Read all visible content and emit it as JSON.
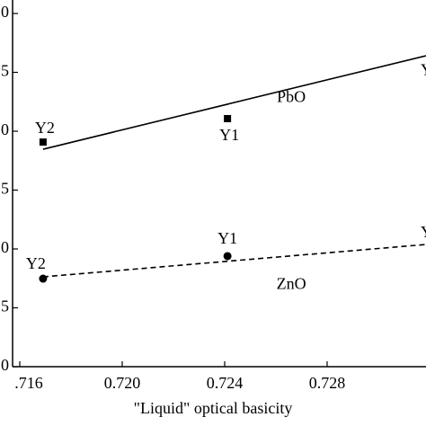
{
  "chart_data": {
    "type": "scatter",
    "x_label": "\"Liquid\" optical basicity",
    "xlim": [
      0.71572,
      0.73186
    ],
    "xticks": [
      {
        "value": 0.716,
        "label": ".716"
      },
      {
        "value": 0.72,
        "label": "0.720"
      },
      {
        "value": 0.724,
        "label": "0.724"
      },
      {
        "value": 0.728,
        "label": "0.728"
      }
    ],
    "ylim": [
      0,
      30
    ],
    "yticks": [
      0,
      5,
      {
        "value": 10,
        "label": "0"
      },
      {
        "value": 15,
        "label": "5"
      },
      {
        "value": 20,
        "label": "0"
      },
      {
        "value": 25,
        "label": "5"
      },
      {
        "value": 30,
        "label": "0"
      }
    ],
    "series": [
      {
        "name": "PbO",
        "marker": "square",
        "color": "#000000",
        "x": [
          0.71691,
          0.72411
        ],
        "values": [
          19.08,
          21.07
        ],
        "point_labels": [
          "Y2",
          "Y1"
        ],
        "fit": {
          "style": "solid",
          "x": [
            0.71691,
            0.73186
          ],
          "values": [
            18.47,
            26.41
          ]
        },
        "edge_label": "Y"
      },
      {
        "name": "ZnO",
        "marker": "circle",
        "color": "#000000",
        "x": [
          0.71691,
          0.72411
        ],
        "values": [
          7.48,
          9.39
        ],
        "point_labels": [
          "Y2",
          "Y1"
        ],
        "fit": {
          "style": "dashed",
          "x": [
            0.71691,
            0.73186
          ],
          "values": [
            7.63,
            10.38
          ]
        },
        "edge_label": "Y"
      }
    ]
  }
}
